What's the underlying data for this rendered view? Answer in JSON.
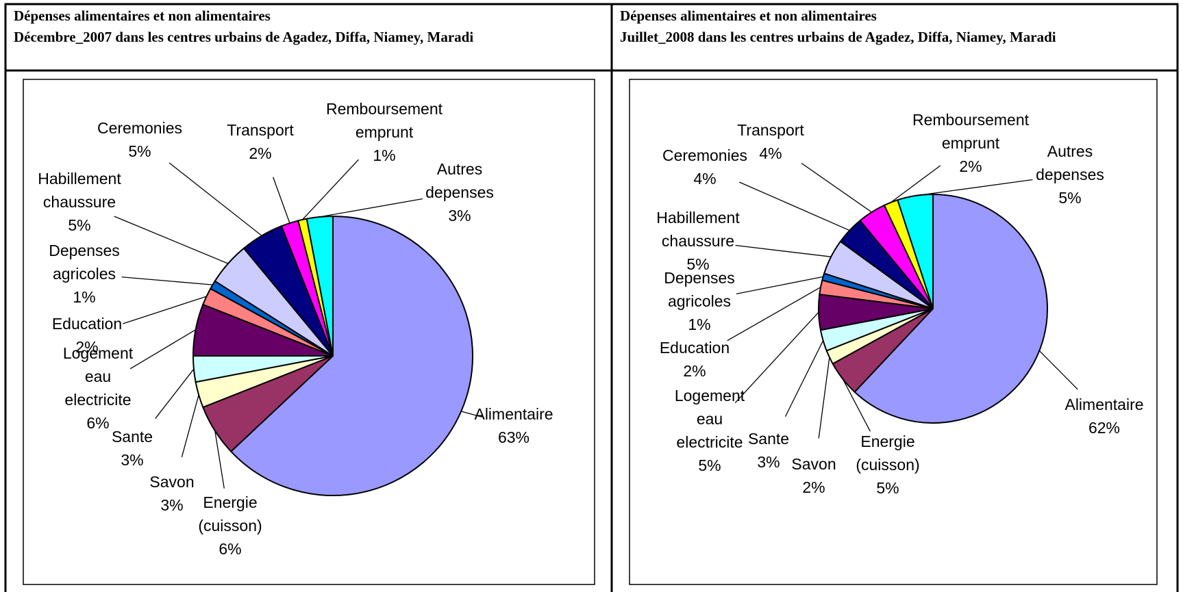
{
  "chart_data": [
    {
      "type": "pie",
      "title": "Dépenses alimentaires et non alimentaires",
      "subtitle": "Décembre_2007 dans les centres urbains de Agadez, Diffa, Niamey, Maradi",
      "categories": [
        "Alimentaire",
        "Energie (cuisson)",
        "Savon",
        "Sante",
        "Logement eau electricite",
        "Education",
        "Depenses agricoles",
        "Habillement chaussure",
        "Ceremonies",
        "Transport",
        "Remboursement emprunt",
        "Autres depenses"
      ],
      "values": [
        63,
        6,
        3,
        3,
        6,
        2,
        1,
        5,
        5,
        2,
        1,
        3
      ],
      "value_labels": [
        "63%",
        "6%",
        "3%",
        "3%",
        "6%",
        "2%",
        "1%",
        "5%",
        "5%",
        "2%",
        "1%",
        "3%"
      ],
      "colors": [
        "#9999ff",
        "#993366",
        "#ffffcc",
        "#ccffff",
        "#660066",
        "#ff8080",
        "#0066cc",
        "#ccccff",
        "#000080",
        "#ff00ff",
        "#ffff00",
        "#00ffff"
      ]
    },
    {
      "type": "pie",
      "title": "Dépenses alimentaires et non alimentaires",
      "subtitle": "Juillet_2008 dans les centres urbains de Agadez, Diffa, Niamey, Maradi",
      "categories": [
        "Alimentaire",
        "Energie (cuisson)",
        "Savon",
        "Sante",
        "Logement eau electricite",
        "Education",
        "Depenses agricoles",
        "Habillement chaussure",
        "Ceremonies",
        "Transport",
        "Remboursement emprunt",
        "Autres depenses"
      ],
      "values": [
        62,
        5,
        2,
        3,
        5,
        2,
        1,
        5,
        4,
        4,
        2,
        5
      ],
      "value_labels": [
        "62%",
        "5%",
        "2%",
        "3%",
        "5%",
        "2%",
        "1%",
        "5%",
        "4%",
        "4%",
        "2%",
        "5%"
      ],
      "colors": [
        "#9999ff",
        "#993366",
        "#ffffcc",
        "#ccffff",
        "#660066",
        "#ff8080",
        "#0066cc",
        "#ccccff",
        "#000080",
        "#ff00ff",
        "#ffff00",
        "#00ffff"
      ]
    }
  ]
}
